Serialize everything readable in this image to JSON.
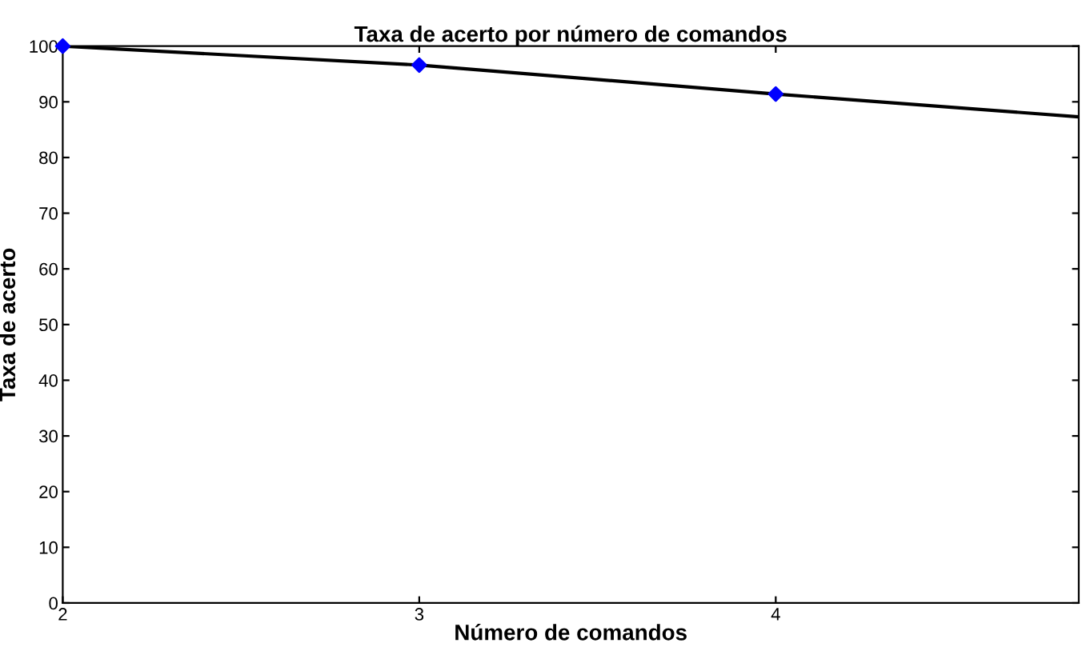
{
  "chart_data": {
    "type": "line",
    "title": "Taxa de acerto por número de comandos",
    "xlabel": "Número de comandos",
    "ylabel": "Taxa de acerto",
    "series": [
      {
        "color": "#000000",
        "x": [
          2,
          3,
          4,
          4.85
        ],
        "values": [
          100,
          96.6,
          91.4,
          87.3
        ],
        "marker": "none"
      },
      {
        "type": "scatter",
        "color": "#0000ff",
        "x": [
          2,
          3,
          4
        ],
        "values": [
          100,
          96.6,
          91.4
        ],
        "marker": "diamond"
      }
    ],
    "xlim": [
      2,
      4.85
    ],
    "xticks": [
      2,
      3,
      4
    ],
    "ylim": [
      0,
      100
    ],
    "yticks": [
      0,
      10,
      20,
      30,
      40,
      50,
      60,
      70,
      80,
      90,
      100
    ],
    "grid": false,
    "legend": false
  }
}
